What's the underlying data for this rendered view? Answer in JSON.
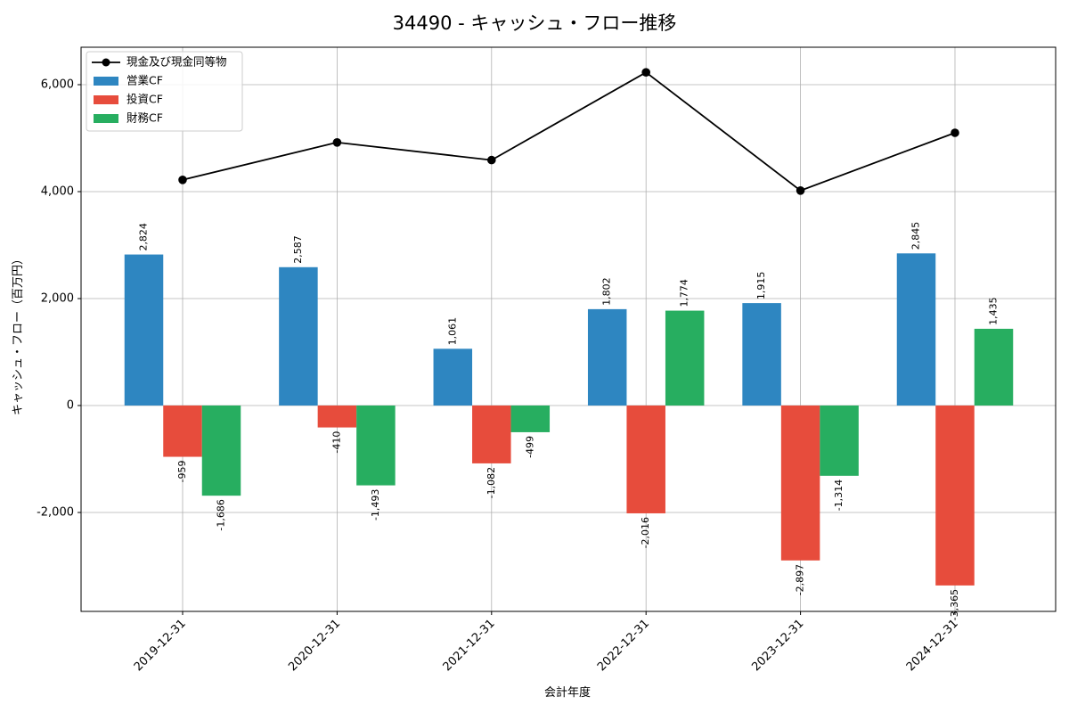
{
  "chart_data": {
    "type": "bar",
    "title": "34490 - キャッシュ・フロー推移",
    "xlabel": "会計年度",
    "ylabel": "キャッシュ・フロー（百万円）",
    "categories": [
      "2019-12-31",
      "2020-12-31",
      "2021-12-31",
      "2022-12-31",
      "2023-12-31",
      "2024-12-31"
    ],
    "series": [
      {
        "name": "営業CF",
        "type": "bar",
        "color": "#2e86c1",
        "values": [
          2824,
          2587,
          1061,
          1802,
          1915,
          2845
        ],
        "labels": [
          "2,824",
          "2,587",
          "1,061",
          "1,802",
          "1,915",
          "2,845"
        ]
      },
      {
        "name": "投資CF",
        "type": "bar",
        "color": "#e74c3c",
        "values": [
          -959,
          -410,
          -1082,
          -2016,
          -2897,
          -3365
        ],
        "labels": [
          "-959",
          "-410",
          "-1,082",
          "-2,016",
          "-2,897",
          "-3,365"
        ]
      },
      {
        "name": "財務CF",
        "type": "bar",
        "color": "#27ae60",
        "values": [
          -1686,
          -1493,
          -499,
          1774,
          -1314,
          1435
        ],
        "labels": [
          "-1,686",
          "-1,493",
          "-499",
          "1,774",
          "-1,314",
          "1,435"
        ]
      },
      {
        "name": "現金及び現金同等物",
        "type": "line",
        "color": "#000000",
        "values": [
          4220,
          4920,
          4590,
          6230,
          4020,
          5100
        ]
      }
    ],
    "ylim": [
      -3850,
      6700
    ],
    "yticks": [
      -2000,
      0,
      2000,
      4000,
      6000
    ],
    "ytick_labels": [
      "-2,000",
      "0",
      "2,000",
      "4,000",
      "6,000"
    ],
    "grid": true,
    "legend_position": "top-left"
  }
}
